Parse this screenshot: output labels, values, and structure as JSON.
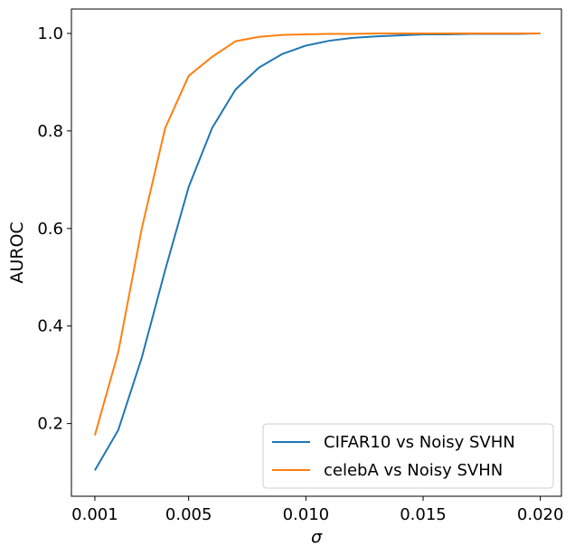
{
  "chart_data": {
    "type": "line",
    "title": "",
    "xlabel": "σ",
    "ylabel": "AUROC",
    "xlim": [
      0.0,
      0.0209
    ],
    "ylim": [
      0.051,
      1.05
    ],
    "xticks": [
      {
        "value": 0.001,
        "label": "0.001"
      },
      {
        "value": 0.005,
        "label": "0.005"
      },
      {
        "value": 0.01,
        "label": "0.010"
      },
      {
        "value": 0.015,
        "label": "0.015"
      },
      {
        "value": 0.02,
        "label": "0.020"
      }
    ],
    "yticks": [
      {
        "value": 0.2,
        "label": "0.2"
      },
      {
        "value": 0.4,
        "label": "0.4"
      },
      {
        "value": 0.6,
        "label": "0.6"
      },
      {
        "value": 0.8,
        "label": "0.8"
      },
      {
        "value": 1.0,
        "label": "1.0"
      }
    ],
    "grid": false,
    "legend_position": "bottom-right",
    "series": [
      {
        "name": "CIFAR10 vs Noisy SVHN",
        "color": "#1f77b4",
        "x": [
          0.001,
          0.002,
          0.003,
          0.004,
          0.005,
          0.006,
          0.007,
          0.008,
          0.009,
          0.01,
          0.011,
          0.012,
          0.013,
          0.014,
          0.015,
          0.016,
          0.017,
          0.018,
          0.019,
          0.02
        ],
        "y": [
          0.104,
          0.187,
          0.335,
          0.515,
          0.685,
          0.806,
          0.885,
          0.93,
          0.958,
          0.975,
          0.985,
          0.991,
          0.994,
          0.996,
          0.998,
          0.998,
          0.999,
          0.999,
          0.999,
          1.0
        ]
      },
      {
        "name": "celebA vs Noisy SVHN",
        "color": "#ff7f0e",
        "x": [
          0.001,
          0.002,
          0.003,
          0.004,
          0.005,
          0.006,
          0.007,
          0.008,
          0.009,
          0.01,
          0.011,
          0.012,
          0.013,
          0.014,
          0.015,
          0.016,
          0.017,
          0.018,
          0.019,
          0.02
        ],
        "y": [
          0.176,
          0.347,
          0.6,
          0.806,
          0.913,
          0.952,
          0.984,
          0.993,
          0.997,
          0.998,
          0.999,
          0.999,
          1.0,
          1.0,
          1.0,
          1.0,
          1.0,
          1.0,
          1.0,
          1.0
        ]
      }
    ]
  }
}
